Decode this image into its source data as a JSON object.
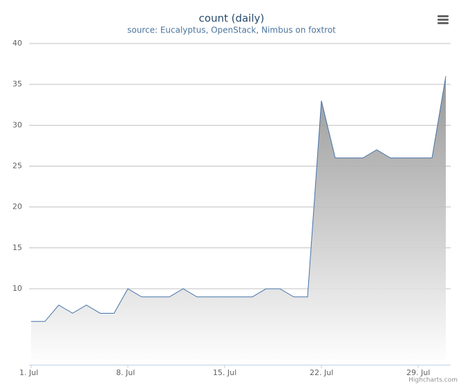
{
  "chart_data": {
    "type": "area",
    "title": "count (daily)",
    "subtitle": "source: Eucalyptus, OpenStack, Nimbus on foxtrot",
    "categories": [
      "1. Jul",
      null,
      null,
      null,
      null,
      null,
      null,
      "8. Jul",
      null,
      null,
      null,
      null,
      null,
      null,
      "15. Jul",
      null,
      null,
      null,
      null,
      null,
      null,
      "22. Jul",
      null,
      null,
      null,
      null,
      null,
      null,
      "29. Jul",
      null,
      null
    ],
    "values": [
      6,
      6,
      8,
      7,
      8,
      7,
      7,
      10,
      9,
      9,
      9,
      10,
      9,
      9,
      9,
      9,
      9,
      10,
      10,
      9,
      9,
      33,
      26,
      26,
      26,
      27,
      26,
      26,
      26,
      26,
      36
    ],
    "color": "#4572a7",
    "ylim": [
      0.7,
      40
    ],
    "yticks": [
      10,
      15,
      20,
      25,
      30,
      35,
      40
    ],
    "grid": true,
    "credits": "Highcharts.com"
  }
}
